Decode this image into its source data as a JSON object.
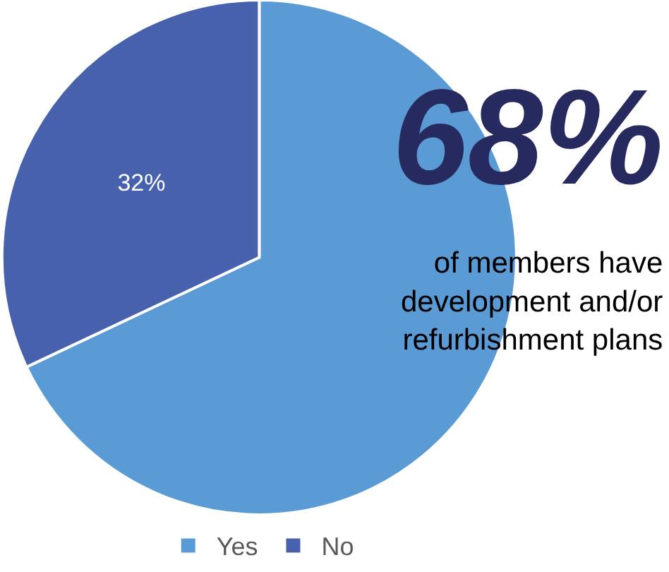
{
  "chart_data": {
    "type": "pie",
    "categories": [
      "Yes",
      "No"
    ],
    "values": [
      68,
      32
    ],
    "colors": [
      "#5b9bd5",
      "#4761ad"
    ],
    "value_labels": [
      null,
      "32%"
    ],
    "legend": "bottom",
    "annotations": [
      "68%",
      "of members have development and/or refurbishment plans"
    ]
  }
}
